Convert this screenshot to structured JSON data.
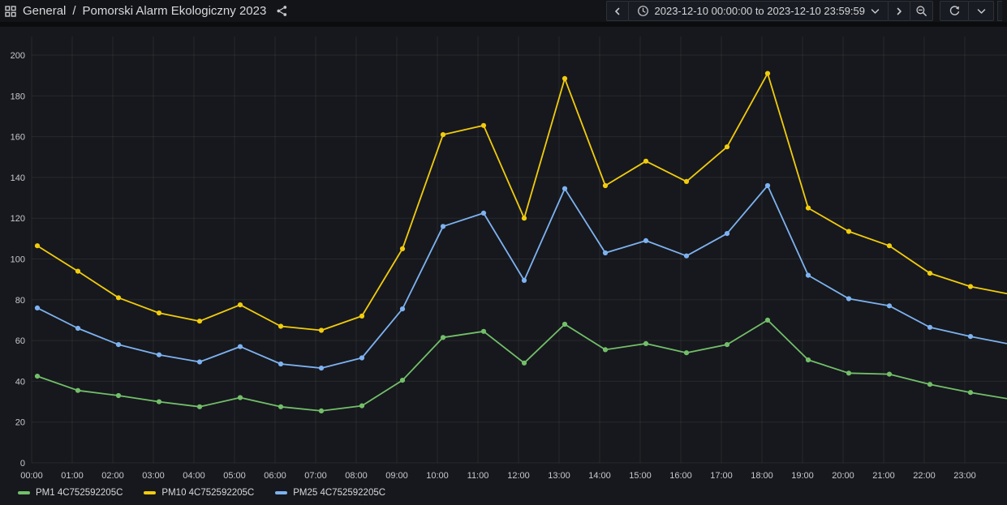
{
  "topbar": {
    "breadcrumb": {
      "root": "General",
      "separator": "/",
      "current": "Pomorski Alarm Ekologiczny 2023"
    },
    "time_picker": {
      "range_label": "2023-12-10 00:00:00 to 2023-12-10 23:59:59"
    }
  },
  "icons": {
    "apps_grid": "grid-squares",
    "share": "share-nodes",
    "time_back": "chevron-left",
    "clock": "clock",
    "range_dropdown": "chevron-down",
    "time_forward": "chevron-right",
    "zoom_out": "magnifier-minus",
    "refresh": "refresh-arrows",
    "refresh_dropdown": "chevron-down"
  },
  "colors": {
    "page_background": "#0B0C0E",
    "topbar_background": "#121418",
    "panel_background": "#16181D",
    "grid_line": "rgba(255,255,255,0.07)",
    "tick_text": "#C8C9CE",
    "green": "#73BF69",
    "yellow": "#F2CC0C",
    "blue": "#7EB2F0"
  },
  "chart_data": {
    "type": "line",
    "title": "",
    "xlabel": "",
    "ylabel": "",
    "x": [
      "00:00",
      "01:00",
      "02:00",
      "03:00",
      "04:00",
      "05:00",
      "06:00",
      "07:00",
      "08:00",
      "09:00",
      "10:00",
      "11:00",
      "12:00",
      "13:00",
      "14:00",
      "15:00",
      "16:00",
      "17:00",
      "18:00",
      "19:00",
      "20:00",
      "21:00",
      "22:00",
      "23:00"
    ],
    "ylim": [
      0,
      205
    ],
    "yticks": [
      0,
      20,
      40,
      60,
      80,
      100,
      120,
      140,
      160,
      180,
      200
    ],
    "grid": true,
    "legend_position": "bottom",
    "series": [
      {
        "name": "PM1 4C752592205C",
        "color": "#73BF69",
        "values": [
          42.5,
          35.5,
          33,
          30,
          27.5,
          32,
          27.5,
          25.5,
          28,
          40.5,
          61.5,
          64.5,
          49,
          68,
          55.5,
          58.5,
          54,
          58,
          70,
          50.5,
          44,
          43.5,
          38.5,
          34.5
        ],
        "edge_value": 31.5
      },
      {
        "name": "PM10 4C752592205C",
        "color": "#F2CC0C",
        "values": [
          106.5,
          94,
          81,
          73.5,
          69.5,
          77.5,
          67,
          65,
          72,
          105,
          161,
          165.5,
          120,
          188.5,
          136,
          148,
          138,
          155,
          191,
          125,
          113.5,
          106.5,
          93,
          86.5
        ],
        "edge_value": 83
      },
      {
        "name": "PM25 4C752592205C",
        "color": "#7EB2F0",
        "values": [
          76,
          66,
          58,
          53,
          49.5,
          57,
          48.5,
          46.5,
          51.5,
          75.5,
          116,
          122.5,
          89.5,
          134.5,
          103,
          109,
          101.5,
          112.5,
          136,
          92,
          80.5,
          77,
          66.5,
          62
        ],
        "edge_value": 58.5
      }
    ]
  }
}
